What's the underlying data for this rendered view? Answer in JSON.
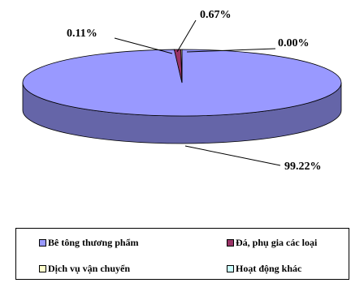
{
  "chart_data": {
    "type": "pie",
    "style": "3d",
    "categories": [
      "Bê tông thương phẩm",
      "Đá, phụ gia các loại",
      "Dịch vụ vận chuyển",
      "Hoạt động khác"
    ],
    "values": [
      99.22,
      0.67,
      0.11,
      0.0
    ],
    "value_labels": [
      "99.22%",
      "0.67%",
      "0.11%",
      "0.00%"
    ],
    "colors": [
      "#9999ff",
      "#993366",
      "#ffffcc",
      "#ccffff"
    ],
    "legend_position": "bottom"
  }
}
